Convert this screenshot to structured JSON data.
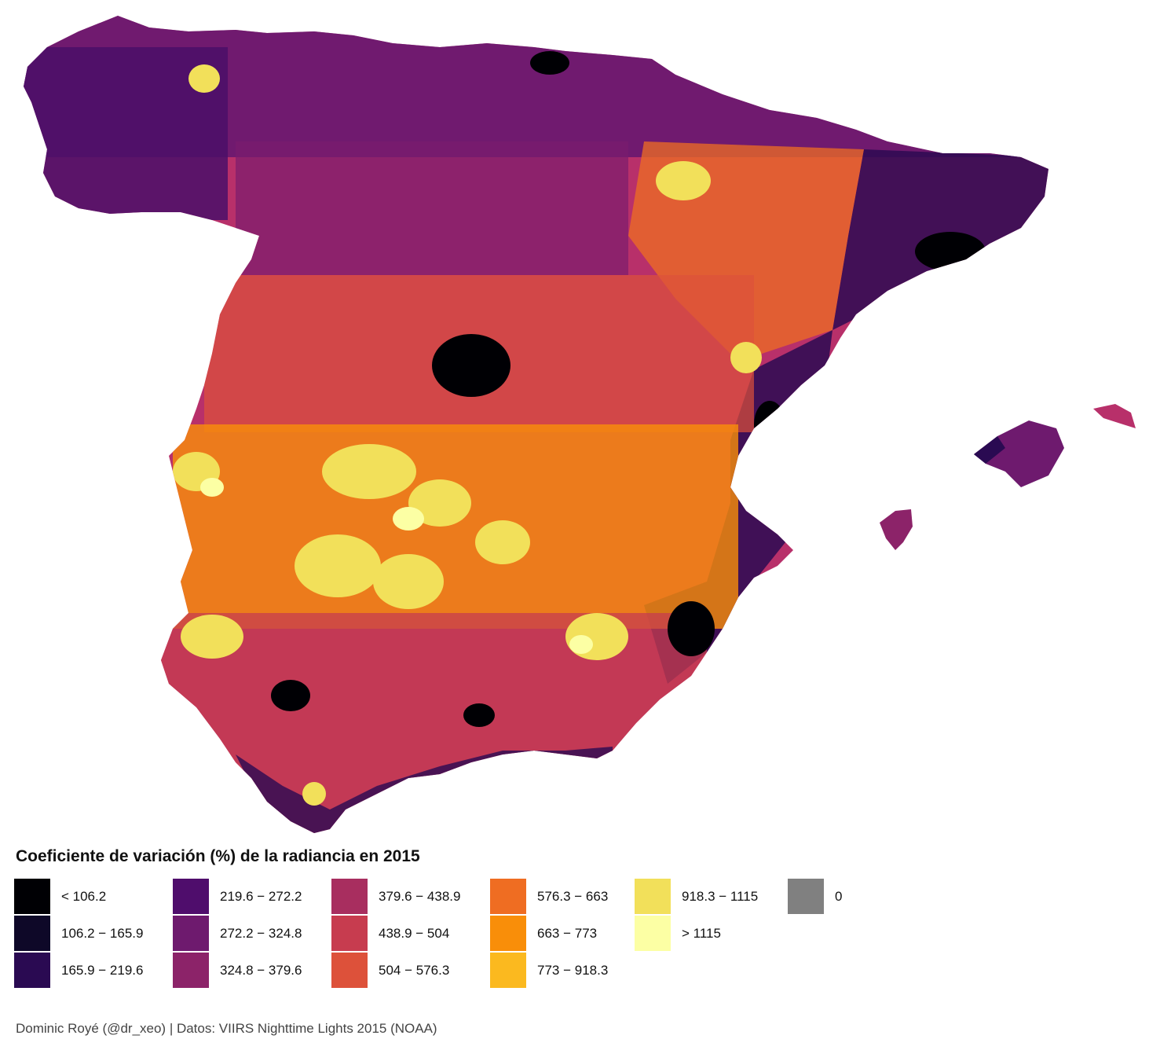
{
  "map": {
    "region": "Spain (peninsula and Balearic Islands), municipalities",
    "colors": {
      "land_base": "#b8306a",
      "ocean": "#ffffff"
    }
  },
  "legend": {
    "title": "Coeficiente de variación (%) de la radiancia en 2015",
    "columns": [
      [
        {
          "label": "< 106.2",
          "color": "#000004"
        },
        {
          "label": "106.2 − 165.9",
          "color": "#0e0828"
        },
        {
          "label": "165.9 − 219.6",
          "color": "#2a0a52"
        }
      ],
      [
        {
          "label": "219.6 − 272.2",
          "color": "#4f0d6c"
        },
        {
          "label": "272.2 − 324.8",
          "color": "#6e1a6e"
        },
        {
          "label": "324.8 − 379.6",
          "color": "#8c2369"
        }
      ],
      [
        {
          "label": "379.6 − 438.9",
          "color": "#a82e5f"
        },
        {
          "label": "438.9 − 504",
          "color": "#c73c4f"
        },
        {
          "label": "504 − 576.3",
          "color": "#dd513a"
        }
      ],
      [
        {
          "label": "576.3 − 663",
          "color": "#ef6d22"
        },
        {
          "label": "663 − 773",
          "color": "#f98e09"
        },
        {
          "label": "773 − 918.3",
          "color": "#fbb91f"
        }
      ],
      [
        {
          "label": "918.3 − 1115",
          "color": "#f2e05a"
        },
        {
          "label": "> 1115",
          "color": "#fcffa4"
        }
      ],
      [
        {
          "label": "0",
          "color": "#808080"
        }
      ]
    ]
  },
  "caption": "Dominic Royé (@dr_xeo) | Datos: VIIRS Nighttime Lights 2015 (NOAA)"
}
